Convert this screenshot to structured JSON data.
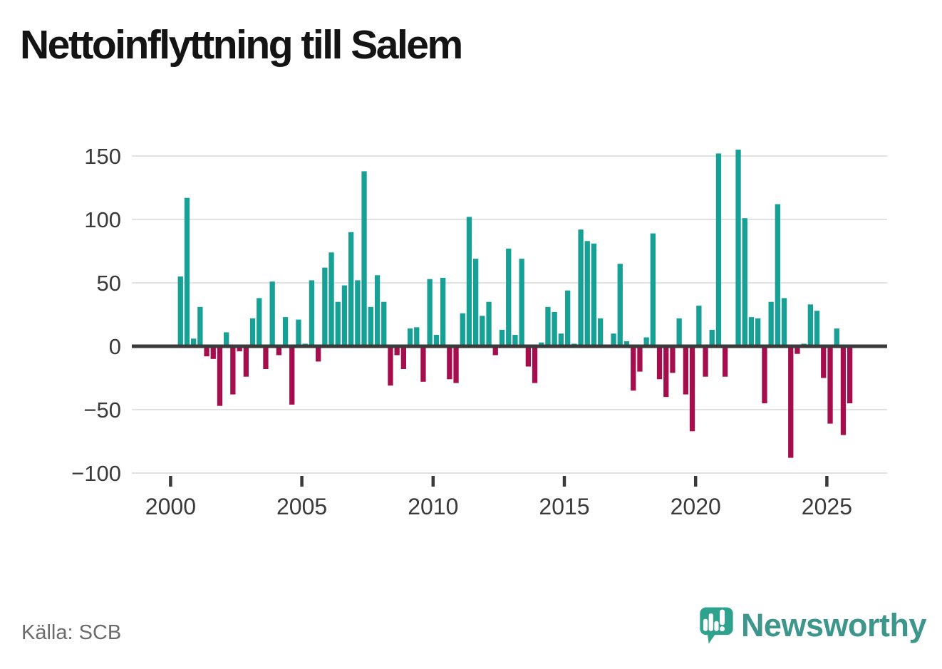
{
  "header": {
    "title": "Nettoinflyttning till Salem"
  },
  "footer": {
    "source": "Källa: SCB",
    "logo_text": "Newsworthy"
  },
  "colors": {
    "positive": "#17a095",
    "negative": "#a60d4c",
    "axis": "#3a3a3a",
    "gridline": "#e2e2e2",
    "tick_label": "#3a3a3a",
    "logo_bubble": "#2fa28e",
    "logo_text": "#3d968b"
  },
  "chart_data": {
    "type": "bar",
    "title": "Nettoinflyttning till Salem",
    "x_unit": "quarter",
    "first_period": "2000 Q2",
    "last_period": "2025 Q4",
    "ylim": [
      -100,
      155
    ],
    "yticks": [
      150,
      100,
      50,
      0,
      -50,
      -100
    ],
    "xticks": [
      2000,
      2005,
      2010,
      2015,
      2020,
      2025
    ],
    "grid": "horizontal",
    "legend": "none",
    "points_format": [
      "quarter",
      "value"
    ],
    "points": [
      [
        "2000Q2",
        55
      ],
      [
        "2000Q3",
        117
      ],
      [
        "2000Q4",
        6
      ],
      [
        "2001Q1",
        31
      ],
      [
        "2001Q2",
        -8
      ],
      [
        "2001Q3",
        -10
      ],
      [
        "2001Q4",
        -47
      ],
      [
        "2002Q1",
        11
      ],
      [
        "2002Q2",
        -38
      ],
      [
        "2002Q3",
        -4
      ],
      [
        "2002Q4",
        -24
      ],
      [
        "2003Q1",
        22
      ],
      [
        "2003Q2",
        38
      ],
      [
        "2003Q3",
        -18
      ],
      [
        "2003Q4",
        51
      ],
      [
        "2004Q1",
        -7
      ],
      [
        "2004Q2",
        23
      ],
      [
        "2004Q3",
        -46
      ],
      [
        "2004Q4",
        21
      ],
      [
        "2005Q1",
        2
      ],
      [
        "2005Q2",
        52
      ],
      [
        "2005Q3",
        -12
      ],
      [
        "2005Q4",
        62
      ],
      [
        "2006Q1",
        74
      ],
      [
        "2006Q2",
        35
      ],
      [
        "2006Q3",
        48
      ],
      [
        "2006Q4",
        90
      ],
      [
        "2007Q1",
        52
      ],
      [
        "2007Q2",
        138
      ],
      [
        "2007Q3",
        31
      ],
      [
        "2007Q4",
        56
      ],
      [
        "2008Q1",
        35
      ],
      [
        "2008Q2",
        -31
      ],
      [
        "2008Q3",
        -7
      ],
      [
        "2008Q4",
        -18
      ],
      [
        "2009Q1",
        14
      ],
      [
        "2009Q2",
        15
      ],
      [
        "2009Q3",
        -28
      ],
      [
        "2009Q4",
        53
      ],
      [
        "2010Q1",
        9
      ],
      [
        "2010Q2",
        54
      ],
      [
        "2010Q3",
        -26
      ],
      [
        "2010Q4",
        -29
      ],
      [
        "2011Q1",
        26
      ],
      [
        "2011Q2",
        102
      ],
      [
        "2011Q3",
        69
      ],
      [
        "2011Q4",
        24
      ],
      [
        "2012Q1",
        35
      ],
      [
        "2012Q2",
        -7
      ],
      [
        "2012Q3",
        13
      ],
      [
        "2012Q4",
        77
      ],
      [
        "2013Q1",
        9
      ],
      [
        "2013Q2",
        69
      ],
      [
        "2013Q3",
        -16
      ],
      [
        "2013Q4",
        -29
      ],
      [
        "2014Q1",
        3
      ],
      [
        "2014Q2",
        31
      ],
      [
        "2014Q3",
        27
      ],
      [
        "2014Q4",
        10
      ],
      [
        "2015Q1",
        44
      ],
      [
        "2015Q2",
        2
      ],
      [
        "2015Q3",
        92
      ],
      [
        "2015Q4",
        83
      ],
      [
        "2016Q1",
        81
      ],
      [
        "2016Q2",
        22
      ],
      [
        "2016Q3",
        1
      ],
      [
        "2016Q4",
        10
      ],
      [
        "2017Q1",
        65
      ],
      [
        "2017Q2",
        4
      ],
      [
        "2017Q3",
        -35
      ],
      [
        "2017Q4",
        -20
      ],
      [
        "2018Q1",
        7
      ],
      [
        "2018Q2",
        89
      ],
      [
        "2018Q3",
        -26
      ],
      [
        "2018Q4",
        -40
      ],
      [
        "2019Q1",
        -21
      ],
      [
        "2019Q2",
        22
      ],
      [
        "2019Q3",
        -38
      ],
      [
        "2019Q4",
        -67
      ],
      [
        "2020Q1",
        32
      ],
      [
        "2020Q2",
        -24
      ],
      [
        "2020Q3",
        13
      ],
      [
        "2020Q4",
        152
      ],
      [
        "2021Q1",
        -24
      ],
      [
        "2021Q2",
        0
      ],
      [
        "2021Q3",
        155
      ],
      [
        "2021Q4",
        101
      ],
      [
        "2022Q1",
        23
      ],
      [
        "2022Q2",
        22
      ],
      [
        "2022Q3",
        -45
      ],
      [
        "2022Q4",
        35
      ],
      [
        "2023Q1",
        112
      ],
      [
        "2023Q2",
        38
      ],
      [
        "2023Q3",
        -88
      ],
      [
        "2023Q4",
        -6
      ],
      [
        "2024Q1",
        2
      ],
      [
        "2024Q2",
        33
      ],
      [
        "2024Q3",
        28
      ],
      [
        "2024Q4",
        -25
      ],
      [
        "2025Q1",
        -61
      ],
      [
        "2025Q2",
        14
      ],
      [
        "2025Q3",
        -70
      ],
      [
        "2025Q4",
        -45
      ]
    ]
  }
}
